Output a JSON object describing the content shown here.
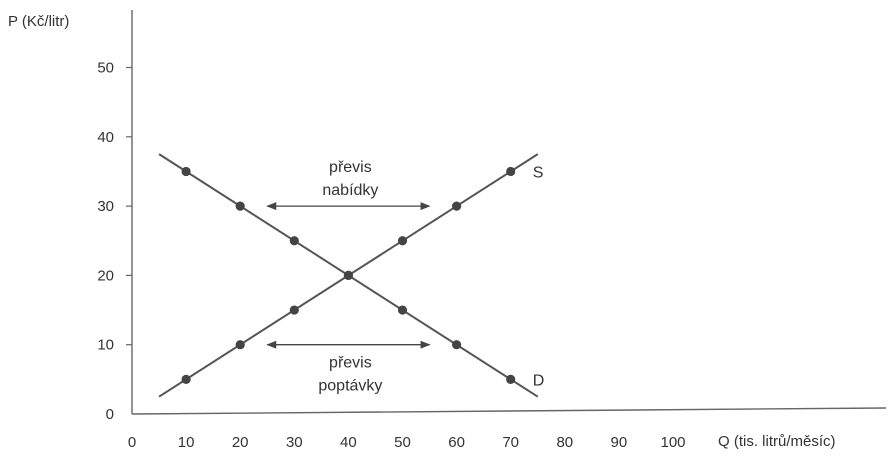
{
  "chart_data": {
    "type": "line",
    "title": "",
    "ylabel": "P (Kč/litr)",
    "xlabel": "Q (tis. litrů/měsíc)",
    "x_ticks": [
      0,
      10,
      20,
      30,
      40,
      50,
      60,
      70,
      80,
      90,
      100
    ],
    "y_ticks": [
      0,
      10,
      20,
      30,
      40,
      50
    ],
    "xlim": [
      0,
      100
    ],
    "ylim": [
      0,
      50
    ],
    "grid": false,
    "series": [
      {
        "name": "S",
        "line": [
          [
            5,
            2.5
          ],
          [
            75,
            37.5
          ]
        ],
        "points": [
          [
            10,
            5
          ],
          [
            20,
            10
          ],
          [
            30,
            15
          ],
          [
            40,
            20
          ],
          [
            50,
            25
          ],
          [
            60,
            30
          ],
          [
            70,
            35
          ]
        ]
      },
      {
        "name": "D",
        "line": [
          [
            5,
            37.5
          ],
          [
            75,
            2.5
          ]
        ],
        "points": [
          [
            10,
            35
          ],
          [
            20,
            30
          ],
          [
            30,
            25
          ],
          [
            40,
            20
          ],
          [
            50,
            15
          ],
          [
            60,
            10
          ],
          [
            70,
            5
          ]
        ]
      }
    ],
    "annotations": [
      {
        "lines": [
          "převis",
          "nabídky"
        ],
        "arrow": {
          "y": 30,
          "x_from": 25,
          "x_to": 55
        }
      },
      {
        "lines": [
          "převis",
          "poptávky"
        ],
        "arrow": {
          "y": 10,
          "x_from": 25,
          "x_to": 55
        }
      }
    ],
    "colors": {
      "line": "#555555",
      "point": "#444444",
      "axis": "#666666"
    }
  }
}
